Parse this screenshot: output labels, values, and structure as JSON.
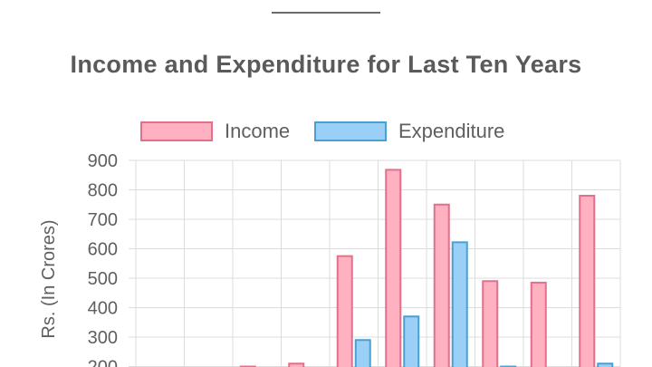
{
  "chart_data": {
    "type": "bar",
    "title": "Income and Expenditure for Last Ten Years",
    "xlabel": "",
    "ylabel": "Rs. (In Crores)",
    "ylim": [
      200,
      900
    ],
    "yticks": [
      "200",
      "300",
      "400",
      "500",
      "600",
      "700",
      "800",
      "900"
    ],
    "grid": true,
    "legend": "top",
    "categories": [
      "",
      "",
      "",
      "",
      "",
      "",
      "",
      "",
      "",
      ""
    ],
    "series": [
      {
        "name": "Income",
        "color": "#ffb1c1",
        "border": "#e2708a",
        "values": [
          null,
          null,
          200,
          210,
          575,
          868,
          750,
          490,
          485,
          780
        ]
      },
      {
        "name": "Expenditure",
        "color": "#9ad0f5",
        "border": "#4a9fd4",
        "values": [
          null,
          null,
          null,
          null,
          290,
          370,
          622,
          200,
          null,
          210
        ]
      }
    ]
  }
}
